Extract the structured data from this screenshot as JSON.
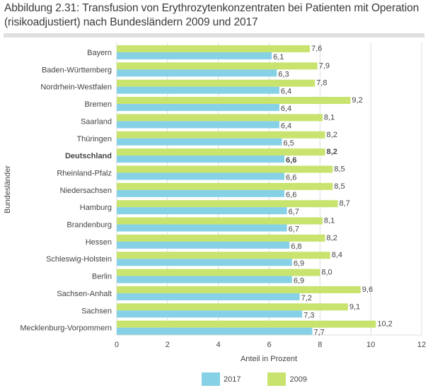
{
  "title": "Abbildung 2.31: Transfusion von Erythrozytenkonzentraten bei Patienten mit Operation (risikoadjustiert) nach Bundesländern 2009 und 2017",
  "chart_data": {
    "type": "bar",
    "orientation": "horizontal",
    "title": "Abbildung 2.31: Transfusion von Erythrozytenkonzentraten bei Patienten mit Operation (risikoadjustiert) nach Bundesländern 2009 und 2017",
    "xlabel": "Anteil in Prozent",
    "ylabel": "Bundesländer",
    "xlim": [
      0,
      12
    ],
    "xticks": [
      0,
      2,
      4,
      6,
      8,
      10,
      12
    ],
    "xtick_labels": [
      "0",
      "2",
      "4",
      "6",
      "8",
      "10",
      "12"
    ],
    "grid": "vertical",
    "legend_position": "bottom",
    "highlight_category": "Deutschland",
    "categories": [
      "Bayern",
      "Baden-Württemberg",
      "Nordrhein-Westfalen",
      "Bremen",
      "Saarland",
      "Thüringen",
      "Deutschland",
      "Rheinland-Pfalz",
      "Niedersachsen",
      "Hamburg",
      "Brandenburg",
      "Hessen",
      "Schleswig-Holstein",
      "Berlin",
      "Sachsen-Anhalt",
      "Sachsen",
      "Mecklenburg-Vorpommern"
    ],
    "series": [
      {
        "name": "2009",
        "color": "#c8e36e",
        "values": [
          7.6,
          7.9,
          7.8,
          9.2,
          8.1,
          8.2,
          8.2,
          8.5,
          8.5,
          8.7,
          8.1,
          8.2,
          8.4,
          8.0,
          9.6,
          9.1,
          10.2
        ],
        "labels": [
          "7,6",
          "7,9",
          "7,8",
          "9,2",
          "8,1",
          "8,2",
          "8,2",
          "8,5",
          "8,5",
          "8,7",
          "8,1",
          "8,2",
          "8,4",
          "8,0",
          "9,6",
          "9,1",
          "10,2"
        ]
      },
      {
        "name": "2017",
        "color": "#86d1e6",
        "values": [
          6.1,
          6.3,
          6.4,
          6.4,
          6.4,
          6.5,
          6.6,
          6.6,
          6.6,
          6.7,
          6.7,
          6.8,
          6.9,
          6.9,
          7.2,
          7.3,
          7.7
        ],
        "labels": [
          "6,1",
          "6,3",
          "6,4",
          "6,4",
          "6,4",
          "6,5",
          "6,6",
          "6,6",
          "6,6",
          "6,7",
          "6,7",
          "6,8",
          "6,9",
          "6,9",
          "7,2",
          "7,3",
          "7,7"
        ]
      }
    ],
    "legend": [
      {
        "name": "2017",
        "color": "#86d1e6"
      },
      {
        "name": "2009",
        "color": "#c8e36e"
      }
    ]
  }
}
